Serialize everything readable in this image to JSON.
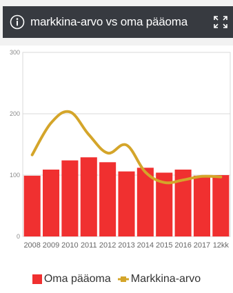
{
  "header": {
    "title": "markkina-arvo vs oma pääoma",
    "info_icon": "info-icon",
    "expand_icon": "expand-icon"
  },
  "colors": {
    "bar": "#f03030",
    "line": "#d4a52a",
    "header_bg": "#373a40",
    "grid": "#d8d8d8"
  },
  "chart_data": {
    "type": "bar",
    "categories": [
      "2008",
      "2009",
      "2010",
      "2011",
      "2012",
      "2013",
      "2014",
      "2015",
      "2016",
      "2017",
      "12kk"
    ],
    "y_ticks": [
      "0",
      "100",
      "200",
      "300"
    ],
    "ylim": [
      0,
      300
    ],
    "grid": true,
    "legend_position": "bottom",
    "series": [
      {
        "name": "Oma pääoma",
        "type": "bar",
        "values": [
          99,
          109,
          124,
          129,
          121,
          106,
          112,
          104,
          109,
          99,
          100
        ]
      },
      {
        "name": "Markkina-arvo",
        "type": "line",
        "values": [
          133,
          185,
          203,
          166,
          136,
          149,
          105,
          88,
          92,
          98,
          97
        ]
      }
    ]
  }
}
